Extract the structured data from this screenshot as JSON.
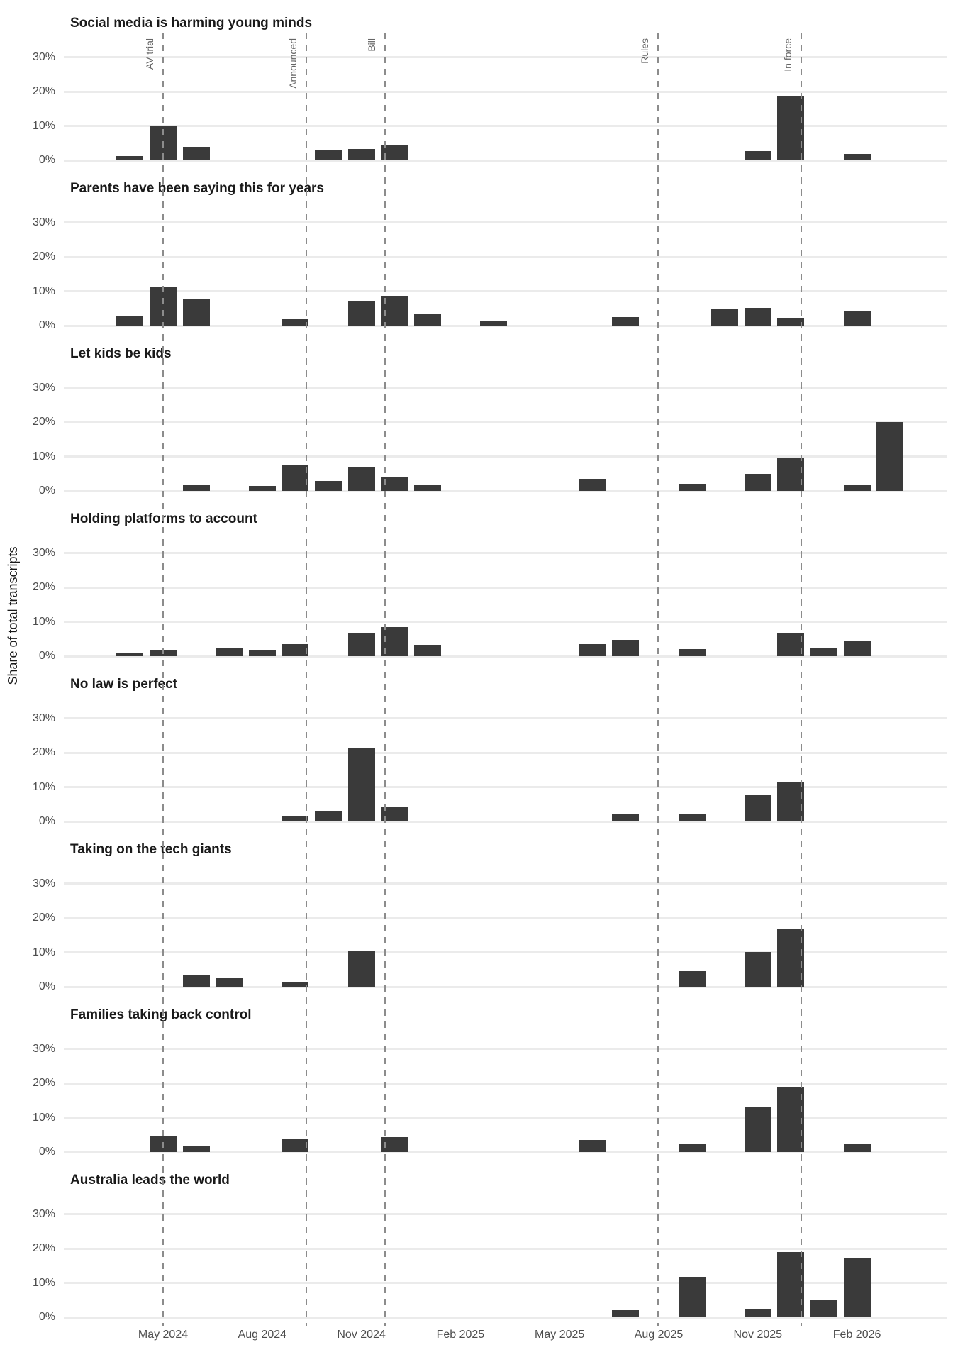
{
  "chart_data": {
    "type": "bar",
    "layout": "small-multiples-vertical",
    "ylabel": "Share of total transcripts",
    "value_unit": "percent of total transcripts",
    "ylim": [
      0,
      32.5
    ],
    "grid": true,
    "legend": false,
    "colors": {
      "bar": "#3a3a3a",
      "gridline": "#ebebeb",
      "event_line": "#8c8c8c",
      "tick_text": "#4d4d4d",
      "event_text": "#666666",
      "title_text": "#1a1a1a"
    },
    "y_ticks": [
      {
        "value": 0,
        "label": "0%"
      },
      {
        "value": 10,
        "label": "10%"
      },
      {
        "value": 20,
        "label": "20%"
      },
      {
        "value": 30,
        "label": "30%"
      }
    ],
    "months": [
      "Apr 2024",
      "May 2024",
      "Jun 2024",
      "Jul 2024",
      "Aug 2024",
      "Sep 2024",
      "Oct 2024",
      "Nov 2024",
      "Dec 2024",
      "Jan 2025",
      "Feb 2025",
      "Mar 2025",
      "Apr 2025",
      "May 2025",
      "Jun 2025",
      "Jul 2025",
      "Aug 2025",
      "Sep 2025",
      "Oct 2025",
      "Nov 2025",
      "Dec 2025",
      "Jan 2026",
      "Feb 2026",
      "Mar 2026"
    ],
    "x_ticks": [
      {
        "label": "May 2024",
        "month_index": 1
      },
      {
        "label": "Aug 2024",
        "month_index": 4
      },
      {
        "label": "Nov 2024",
        "month_index": 7
      },
      {
        "label": "Feb 2025",
        "month_index": 10
      },
      {
        "label": "May 2025",
        "month_index": 13
      },
      {
        "label": "Aug 2025",
        "month_index": 16
      },
      {
        "label": "Nov 2025",
        "month_index": 19
      },
      {
        "label": "Feb 2026",
        "month_index": 22
      }
    ],
    "events": [
      {
        "label": "AV trial",
        "month_index": 1.0
      },
      {
        "label": "Announced",
        "month_index": 5.33
      },
      {
        "label": "Bill",
        "month_index": 7.72
      },
      {
        "label": "Rules",
        "month_index": 15.98
      },
      {
        "label": "In force",
        "month_index": 20.32
      }
    ],
    "panels": [
      {
        "title": "Social media is harming young minds",
        "bars": [
          {
            "month": "Apr 2024",
            "value": 1.2
          },
          {
            "month": "May 2024",
            "value": 10.0
          },
          {
            "month": "Jun 2024",
            "value": 3.9
          },
          {
            "month": "Oct 2024",
            "value": 3.0
          },
          {
            "month": "Nov 2024",
            "value": 3.4
          },
          {
            "month": "Dec 2024",
            "value": 4.3
          },
          {
            "month": "Nov 2025",
            "value": 2.6
          },
          {
            "month": "Dec 2025",
            "value": 18.8
          },
          {
            "month": "Feb 2026",
            "value": 1.9
          }
        ]
      },
      {
        "title": "Parents have been saying this for years",
        "bars": [
          {
            "month": "Apr 2024",
            "value": 2.6
          },
          {
            "month": "May 2024",
            "value": 11.4
          },
          {
            "month": "Jun 2024",
            "value": 7.8
          },
          {
            "month": "Sep 2024",
            "value": 1.9
          },
          {
            "month": "Nov 2024",
            "value": 7.0
          },
          {
            "month": "Dec 2024",
            "value": 8.6
          },
          {
            "month": "Jan 2025",
            "value": 3.6
          },
          {
            "month": "Mar 2025",
            "value": 1.4
          },
          {
            "month": "Jul 2025",
            "value": 2.4
          },
          {
            "month": "Oct 2025",
            "value": 4.7
          },
          {
            "month": "Nov 2025",
            "value": 5.1
          },
          {
            "month": "Dec 2025",
            "value": 2.3
          },
          {
            "month": "Feb 2026",
            "value": 4.3
          }
        ]
      },
      {
        "title": "Let kids be kids",
        "bars": [
          {
            "month": "Jun 2024",
            "value": 1.7
          },
          {
            "month": "Aug 2024",
            "value": 1.5
          },
          {
            "month": "Sep 2024",
            "value": 7.5
          },
          {
            "month": "Oct 2024",
            "value": 2.9
          },
          {
            "month": "Nov 2024",
            "value": 6.9
          },
          {
            "month": "Dec 2024",
            "value": 4.2
          },
          {
            "month": "Jan 2025",
            "value": 1.6
          },
          {
            "month": "Jun 2025",
            "value": 3.5
          },
          {
            "month": "Sep 2025",
            "value": 2.1
          },
          {
            "month": "Nov 2025",
            "value": 5.0
          },
          {
            "month": "Dec 2025",
            "value": 9.4
          },
          {
            "month": "Feb 2026",
            "value": 1.8
          },
          {
            "month": "Mar 2026",
            "value": 20.0
          }
        ]
      },
      {
        "title": "Holding platforms to account",
        "bars": [
          {
            "month": "Apr 2024",
            "value": 1.1
          },
          {
            "month": "May 2024",
            "value": 1.6
          },
          {
            "month": "Jul 2024",
            "value": 2.5
          },
          {
            "month": "Aug 2024",
            "value": 1.6
          },
          {
            "month": "Sep 2024",
            "value": 3.5
          },
          {
            "month": "Nov 2024",
            "value": 6.8
          },
          {
            "month": "Dec 2024",
            "value": 8.5
          },
          {
            "month": "Jan 2025",
            "value": 3.3
          },
          {
            "month": "Jun 2025",
            "value": 3.5
          },
          {
            "month": "Jul 2025",
            "value": 4.7
          },
          {
            "month": "Sep 2025",
            "value": 2.0
          },
          {
            "month": "Dec 2025",
            "value": 6.8
          },
          {
            "month": "Jan 2026",
            "value": 2.3
          },
          {
            "month": "Feb 2026",
            "value": 4.3
          }
        ]
      },
      {
        "title": "No law is perfect",
        "bars": [
          {
            "month": "Sep 2024",
            "value": 1.6
          },
          {
            "month": "Oct 2024",
            "value": 3.0
          },
          {
            "month": "Nov 2024",
            "value": 21.3
          },
          {
            "month": "Dec 2024",
            "value": 4.1
          },
          {
            "month": "Jul 2025",
            "value": 2.1
          },
          {
            "month": "Sep 2025",
            "value": 2.1
          },
          {
            "month": "Nov 2025",
            "value": 7.7
          },
          {
            "month": "Dec 2025",
            "value": 11.5
          }
        ]
      },
      {
        "title": "Taking on the tech giants",
        "bars": [
          {
            "month": "Jun 2024",
            "value": 3.6
          },
          {
            "month": "Jul 2024",
            "value": 2.4
          },
          {
            "month": "Sep 2024",
            "value": 1.5
          },
          {
            "month": "Nov 2024",
            "value": 10.4
          },
          {
            "month": "Sep 2025",
            "value": 4.5
          },
          {
            "month": "Nov 2025",
            "value": 10.2
          },
          {
            "month": "Dec 2025",
            "value": 16.6
          }
        ]
      },
      {
        "title": "Families taking back control",
        "bars": [
          {
            "month": "May 2024",
            "value": 4.7
          },
          {
            "month": "Jun 2024",
            "value": 1.9
          },
          {
            "month": "Sep 2024",
            "value": 3.8
          },
          {
            "month": "Dec 2024",
            "value": 4.3
          },
          {
            "month": "Jun 2025",
            "value": 3.6
          },
          {
            "month": "Sep 2025",
            "value": 2.3
          },
          {
            "month": "Nov 2025",
            "value": 13.2
          },
          {
            "month": "Dec 2025",
            "value": 19.0
          },
          {
            "month": "Feb 2026",
            "value": 2.2
          }
        ]
      },
      {
        "title": "Australia leads the world",
        "bars": [
          {
            "month": "Jul 2025",
            "value": 2.1
          },
          {
            "month": "Sep 2025",
            "value": 11.8
          },
          {
            "month": "Nov 2025",
            "value": 2.4
          },
          {
            "month": "Dec 2025",
            "value": 19.0
          },
          {
            "month": "Jan 2026",
            "value": 4.9
          },
          {
            "month": "Feb 2026",
            "value": 17.4
          }
        ]
      }
    ]
  }
}
